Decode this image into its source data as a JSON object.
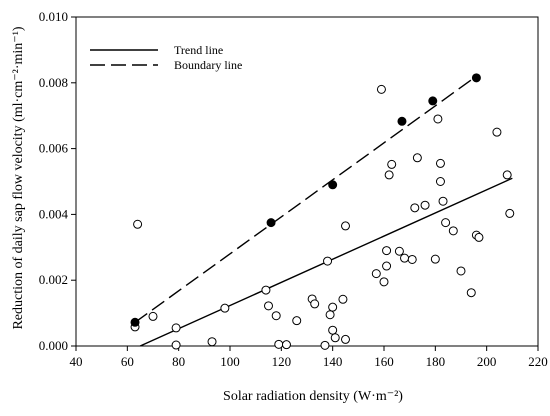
{
  "chart_data": {
    "type": "scatter",
    "xlabel": "Solar radiation density (W·m⁻²)",
    "ylabel": "Reduction of daily sap flow velocity (ml·cm⁻²·min⁻¹)",
    "xlim": [
      40,
      220
    ],
    "ylim": [
      0,
      0.01
    ],
    "xticks": [
      40,
      60,
      80,
      100,
      120,
      140,
      160,
      180,
      200,
      220
    ],
    "yticks": [
      0.0,
      0.002,
      0.004,
      0.006,
      0.008,
      0.01
    ],
    "ytick_labels": [
      "0.000",
      "0.002",
      "0.004",
      "0.006",
      "0.008",
      "0.010"
    ],
    "legend_position": "top-left",
    "grid": false,
    "legend": [
      {
        "label": "Trend line",
        "style": "solid"
      },
      {
        "label": "Boundary line",
        "style": "dashed"
      }
    ],
    "series": [
      {
        "marker": "open-circle",
        "x": [
          63,
          64,
          70,
          79,
          79,
          93,
          98,
          114,
          115,
          118,
          119,
          122,
          126,
          132,
          133,
          137,
          138,
          139,
          140,
          140,
          141,
          144,
          145,
          145,
          157,
          159,
          160,
          161,
          161,
          162,
          163,
          166,
          168,
          171,
          172,
          173,
          176,
          180,
          181,
          182,
          182,
          183,
          184,
          187,
          190,
          194,
          196,
          197,
          204,
          208,
          209
        ],
        "y": [
          0.00058,
          0.0037,
          0.0009,
          0.00055,
          3e-05,
          0.00013,
          0.00115,
          0.0017,
          0.00122,
          0.00092,
          5e-05,
          4e-05,
          0.00077,
          0.00143,
          0.00128,
          2e-05,
          0.00258,
          0.00095,
          0.00118,
          0.00048,
          0.00025,
          0.00142,
          0.0002,
          0.00365,
          0.0022,
          0.0078,
          0.00195,
          0.00243,
          0.0029,
          0.0052,
          0.00552,
          0.00288,
          0.00267,
          0.00263,
          0.0042,
          0.00572,
          0.00428,
          0.00264,
          0.0069,
          0.00555,
          0.005,
          0.0044,
          0.00375,
          0.0035,
          0.00228,
          0.00162,
          0.00337,
          0.0033,
          0.0065,
          0.0052,
          0.00403
        ]
      },
      {
        "marker": "filled-circle",
        "x": [
          63,
          116,
          140,
          167,
          179,
          196
        ],
        "y": [
          0.00072,
          0.00375,
          0.0049,
          0.00683,
          0.00745,
          0.00815
        ]
      }
    ],
    "lines": [
      {
        "label": "Trend line",
        "style": "solid",
        "x": [
          65,
          210
        ],
        "y": [
          0.0,
          0.0051
        ]
      },
      {
        "label": "Boundary line",
        "style": "dashed",
        "x": [
          63,
          196
        ],
        "y": [
          0.00072,
          0.0082
        ]
      }
    ]
  }
}
